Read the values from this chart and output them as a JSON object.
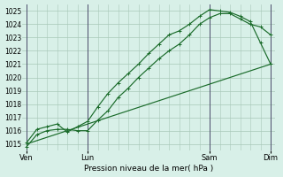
{
  "title": "",
  "xlabel": "Pression niveau de la mer( hPa )",
  "ylabel": "",
  "bg_color": "#d8f0e8",
  "grid_color": "#a8c8b8",
  "line_color": "#1a6b2a",
  "vline_color": "#4a4a6a",
  "ylim": [
    1014.5,
    1025.5
  ],
  "xlim": [
    -0.2,
    12.2
  ],
  "day_labels": [
    "Ven",
    "Lun",
    "Sam",
    "Dim"
  ],
  "day_positions": [
    0,
    3,
    9,
    12
  ],
  "line1_x": [
    0,
    0.5,
    1.0,
    1.5,
    2.0,
    2.5,
    3.0,
    3.5,
    4.0,
    4.5,
    5.0,
    5.5,
    6.0,
    6.5,
    7.0,
    7.5,
    8.0,
    8.5,
    9.0,
    9.5,
    10.0,
    10.5,
    11.0,
    11.5,
    12.0
  ],
  "line1_y": [
    1014.8,
    1015.7,
    1016.0,
    1016.1,
    1016.1,
    1016.0,
    1016.0,
    1016.8,
    1017.5,
    1018.5,
    1019.2,
    1020.0,
    1020.7,
    1021.4,
    1022.0,
    1022.5,
    1023.2,
    1024.0,
    1024.5,
    1024.8,
    1024.8,
    1024.4,
    1024.0,
    1023.8,
    1023.2
  ],
  "line2_x": [
    0,
    0.5,
    1.0,
    1.5,
    2.0,
    2.5,
    3.0,
    3.5,
    4.0,
    4.5,
    5.0,
    5.5,
    6.0,
    6.5,
    7.0,
    7.5,
    8.0,
    8.5,
    9.0,
    9.5,
    10.0,
    10.5,
    11.0,
    11.5,
    12.0
  ],
  "line2_y": [
    1015.1,
    1016.1,
    1016.3,
    1016.5,
    1015.9,
    1016.3,
    1016.7,
    1017.8,
    1018.8,
    1019.6,
    1020.3,
    1021.0,
    1021.8,
    1022.5,
    1023.2,
    1023.5,
    1024.0,
    1024.6,
    1025.1,
    1025.0,
    1024.9,
    1024.6,
    1024.2,
    1022.6,
    1021.0
  ],
  "line3_x": [
    0,
    12
  ],
  "line3_y": [
    1015.0,
    1021.0
  ],
  "yticks": [
    1015,
    1016,
    1017,
    1018,
    1019,
    1020,
    1021,
    1022,
    1023,
    1024,
    1025
  ],
  "ytick_fontsize": 5.5,
  "xtick_fontsize": 6.0,
  "xlabel_fontsize": 6.5
}
